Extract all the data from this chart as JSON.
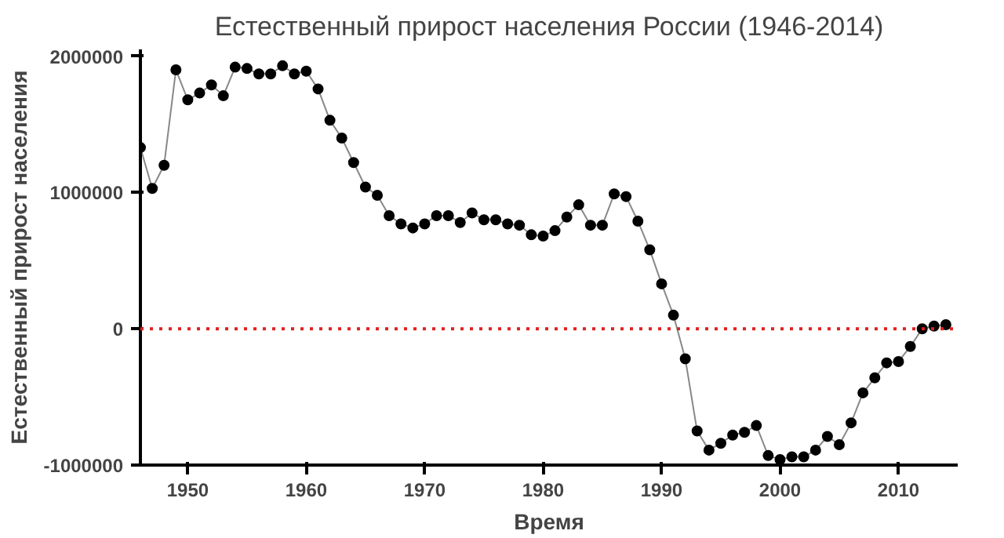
{
  "chart_data": {
    "type": "line",
    "title": "Естественный прирост населения России (1946-2014)",
    "xlabel": "Время",
    "ylabel": "Естественный прирост населения",
    "x": [
      1946,
      1947,
      1948,
      1949,
      1950,
      1951,
      1952,
      1953,
      1954,
      1955,
      1956,
      1957,
      1958,
      1959,
      1960,
      1961,
      1962,
      1963,
      1964,
      1965,
      1966,
      1967,
      1968,
      1969,
      1970,
      1971,
      1972,
      1973,
      1974,
      1975,
      1976,
      1977,
      1978,
      1979,
      1980,
      1981,
      1982,
      1983,
      1984,
      1985,
      1986,
      1987,
      1988,
      1989,
      1990,
      1991,
      1992,
      1993,
      1994,
      1995,
      1996,
      1997,
      1998,
      1999,
      2000,
      2001,
      2002,
      2003,
      2004,
      2005,
      2006,
      2007,
      2008,
      2009,
      2010,
      2011,
      2012,
      2013,
      2014
    ],
    "series": [
      {
        "color": "#000000",
        "values": [
          1330000,
          1030000,
          1200000,
          1900000,
          1680000,
          1730000,
          1790000,
          1710000,
          1920000,
          1910000,
          1870000,
          1870000,
          1930000,
          1870000,
          1890000,
          1760000,
          1530000,
          1400000,
          1220000,
          1040000,
          980000,
          830000,
          770000,
          740000,
          770000,
          830000,
          830000,
          780000,
          850000,
          800000,
          800000,
          770000,
          760000,
          690000,
          680000,
          720000,
          820000,
          910000,
          760000,
          760000,
          990000,
          970000,
          790000,
          580000,
          330000,
          100000,
          -220000,
          -750000,
          -890000,
          -840000,
          -780000,
          -760000,
          -710000,
          -930000,
          -960000,
          -940000,
          -940000,
          -890000,
          -790000,
          -850000,
          -690000,
          -470000,
          -360000,
          -250000,
          -240000,
          -130000,
          0,
          20000,
          30000
        ]
      }
    ],
    "xlim": [
      1946,
      2015
    ],
    "ylim": [
      -1000000,
      2050000
    ],
    "xticks": [
      1950,
      1960,
      1970,
      1980,
      1990,
      2000,
      2010
    ],
    "yticks": [
      -1000000,
      0,
      1000000,
      2000000
    ],
    "ref_lines": [
      {
        "axis": "y",
        "value": 0,
        "color": "#e02020",
        "line_style": "dotted"
      }
    ],
    "marker": "circle",
    "grid": false
  }
}
